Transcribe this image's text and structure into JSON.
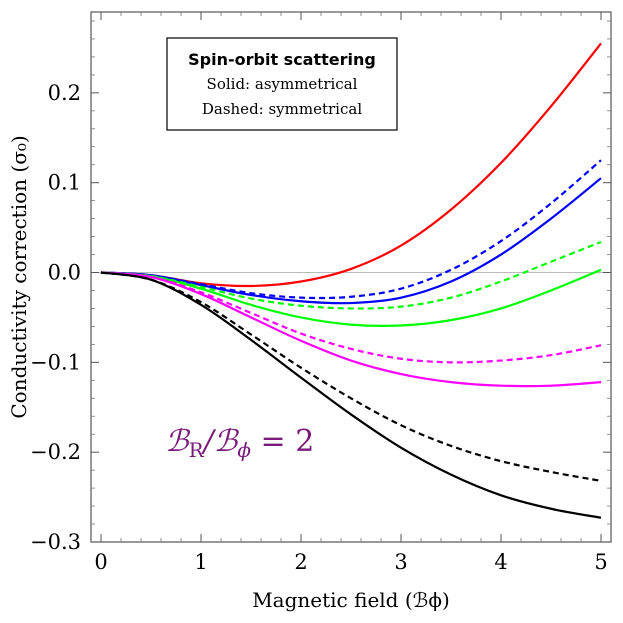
{
  "chart_data": {
    "type": "line",
    "xlabel": "Magnetic field (ℬϕ)",
    "ylabel": "Conductivity correction (σ₀)",
    "xlim": [
      -0.1,
      5.1
    ],
    "ylim": [
      -0.3,
      0.29
    ],
    "x_ticks": [
      0,
      1,
      2,
      3,
      4,
      5
    ],
    "y_ticks": [
      -0.3,
      -0.2,
      -0.1,
      0.0,
      0.1,
      0.2
    ],
    "x_tick_labels": [
      "0",
      "1",
      "2",
      "3",
      "4",
      "5"
    ],
    "y_tick_labels": [
      "−0.3",
      "−0.2",
      "−0.1",
      "0.0",
      "0.1",
      "0.2"
    ],
    "legend": {
      "title": "Spin-orbit scattering",
      "line1": "Solid: asymmetrical",
      "line2": "Dashed: symmetrical"
    },
    "annotation": {
      "text": "ℬR/ℬϕ = 2",
      "symbol": "ℬ",
      "sub1": "R",
      "slash": "/",
      "sub2": "ϕ",
      "rhs": " = 2"
    },
    "x": [
      0,
      0.5,
      1,
      1.5,
      2,
      2.5,
      3,
      3.5,
      4,
      4.5,
      5
    ],
    "series": [
      {
        "name": "red-solid",
        "color": "#ff0000",
        "style": "solid",
        "values": [
          0,
          -0.003,
          -0.012,
          -0.015,
          -0.01,
          0.004,
          0.03,
          0.07,
          0.122,
          0.185,
          0.255
        ]
      },
      {
        "name": "blue-dashed",
        "color": "#0000ff",
        "style": "dashed",
        "values": [
          0,
          -0.003,
          -0.013,
          -0.023,
          -0.028,
          -0.027,
          -0.018,
          0.003,
          0.035,
          0.077,
          0.125
        ]
      },
      {
        "name": "blue-solid",
        "color": "#0000ff",
        "style": "solid",
        "values": [
          0,
          -0.003,
          -0.014,
          -0.025,
          -0.032,
          -0.034,
          -0.028,
          -0.01,
          0.02,
          0.06,
          0.105
        ]
      },
      {
        "name": "green-dashed",
        "color": "#00ff00",
        "style": "dashed",
        "values": [
          0,
          -0.004,
          -0.016,
          -0.029,
          -0.037,
          -0.04,
          -0.038,
          -0.028,
          -0.01,
          0.012,
          0.034
        ]
      },
      {
        "name": "green-solid",
        "color": "#00ff00",
        "style": "solid",
        "values": [
          0,
          -0.004,
          -0.018,
          -0.036,
          -0.05,
          -0.058,
          -0.059,
          -0.053,
          -0.04,
          -0.02,
          0.003
        ]
      },
      {
        "name": "magenta-dashed",
        "color": "#ff00ff",
        "style": "dashed",
        "values": [
          0,
          -0.005,
          -0.022,
          -0.045,
          -0.068,
          -0.085,
          -0.096,
          -0.1,
          -0.098,
          -0.092,
          -0.081
        ]
      },
      {
        "name": "magenta-solid",
        "color": "#ff00ff",
        "style": "solid",
        "values": [
          0,
          -0.005,
          -0.024,
          -0.05,
          -0.076,
          -0.098,
          -0.113,
          -0.122,
          -0.126,
          -0.126,
          -0.122
        ]
      },
      {
        "name": "black-dashed",
        "color": "#000000",
        "style": "dashed",
        "values": [
          0,
          -0.008,
          -0.033,
          -0.069,
          -0.106,
          -0.14,
          -0.17,
          -0.193,
          -0.21,
          -0.222,
          -0.232
        ]
      },
      {
        "name": "black-solid",
        "color": "#000000",
        "style": "solid",
        "values": [
          0,
          -0.008,
          -0.036,
          -0.075,
          -0.117,
          -0.158,
          -0.195,
          -0.225,
          -0.248,
          -0.263,
          -0.273
        ]
      }
    ]
  }
}
